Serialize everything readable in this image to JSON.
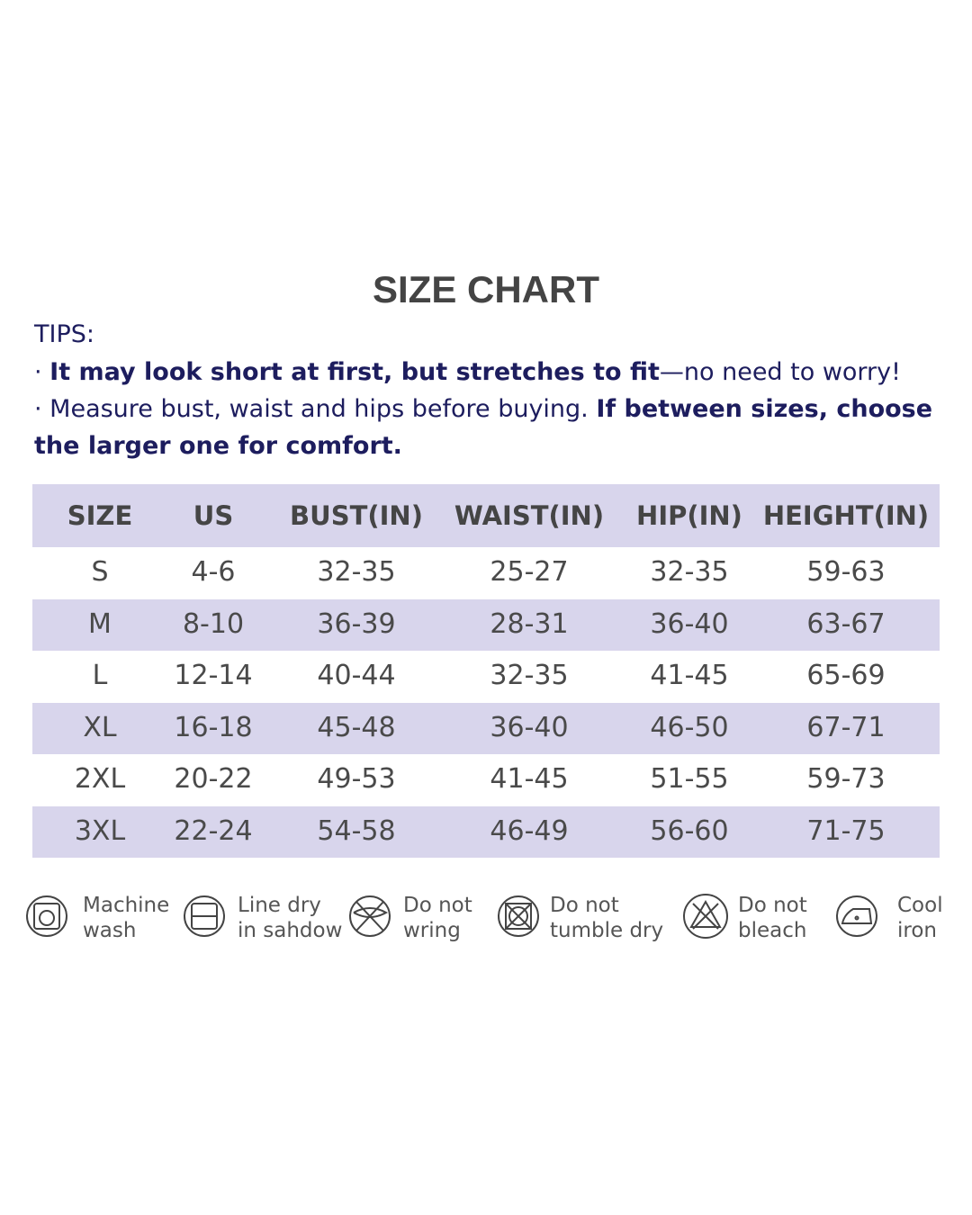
{
  "title": "SIZE CHART",
  "tips": {
    "label": "TIPS:",
    "lines": [
      [
        {
          "text": "· ",
          "bold": false
        },
        {
          "text": "It may look short at first, but stretches to fit",
          "bold": true
        },
        {
          "text": "—no need to worry!",
          "bold": false
        }
      ],
      [
        {
          "text": "· Measure bust, waist and hips before buying. ",
          "bold": false
        },
        {
          "text": "If between sizes, choose the larger one for comfort.",
          "bold": true
        }
      ]
    ]
  },
  "table": {
    "headers": [
      "SIZE",
      "US",
      "BUST(IN)",
      "WAIST(IN)",
      "HIP(IN)",
      "HEIGHT(IN)"
    ],
    "rows": [
      [
        "S",
        "4-6",
        "32-35",
        "25-27",
        "32-35",
        "59-63"
      ],
      [
        "M",
        "8-10",
        "36-39",
        "28-31",
        "36-40",
        "63-67"
      ],
      [
        "L",
        "12-14",
        "40-44",
        "32-35",
        "41-45",
        "65-69"
      ],
      [
        "XL",
        "16-18",
        "45-48",
        "36-40",
        "46-50",
        "67-71"
      ],
      [
        "2XL",
        "20-22",
        "49-53",
        "41-45",
        "51-55",
        "59-73"
      ],
      [
        "3XL",
        "22-24",
        "54-58",
        "46-49",
        "56-60",
        "71-75"
      ]
    ]
  },
  "care": [
    {
      "lines": [
        "Machine",
        "wash"
      ]
    },
    {
      "lines": [
        "Line dry",
        "in sahdow"
      ]
    },
    {
      "lines": [
        "Do not",
        "wring"
      ]
    },
    {
      "lines": [
        "Do not",
        "tumble dry"
      ]
    },
    {
      "lines": [
        "Do not",
        "bleach"
      ]
    },
    {
      "lines": [
        "Cool",
        "iron"
      ]
    }
  ]
}
